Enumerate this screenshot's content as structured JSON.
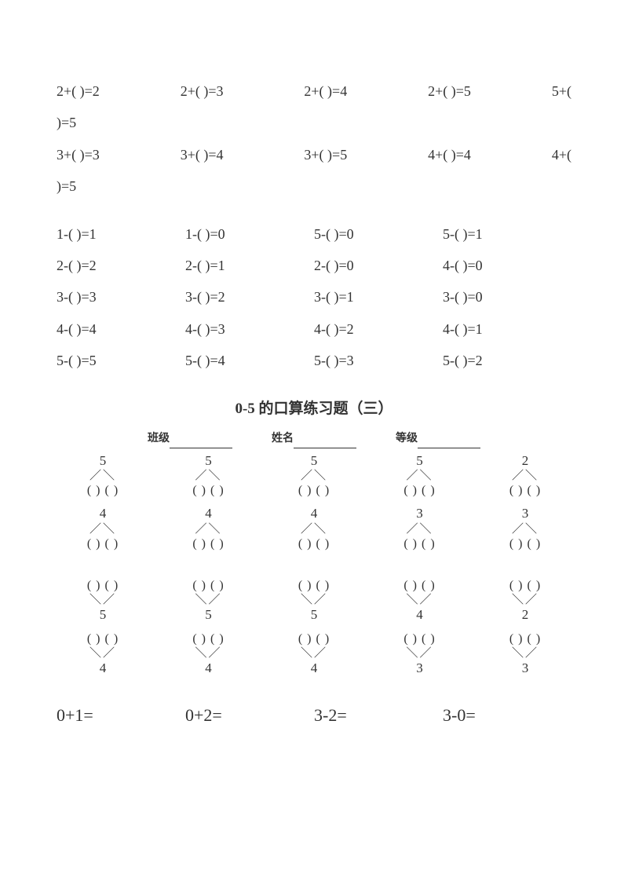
{
  "block1": {
    "line1": [
      "2+(  )=2",
      "2+(  )=3",
      "2+(  )=4",
      "2+(  )=5",
      "5+("
    ],
    "line1_wrap": ")=5",
    "line2": [
      "3+(  )=3",
      "3+(  )=4",
      "3+(  )=5",
      "4+(  )=4",
      "4+("
    ],
    "line2_wrap": ")=5"
  },
  "block2": {
    "rows": [
      [
        "1-(  )=1",
        "1-(  )=0",
        "5-(  )=0",
        "5-(  )=1"
      ],
      [
        "2-(  )=2",
        "2-(  )=1",
        "2-(  )=0",
        "4-(  )=0"
      ],
      [
        "3-(  )=3",
        "3-(  )=2",
        "3-(  )=1",
        "3-(  )=0"
      ],
      [
        "4-(  )=4",
        "4-(  )=3",
        "4-(  )=2",
        "4-(  )=1"
      ],
      [
        "5-(  )=5",
        "5-(  )=4",
        "5-(  )=3",
        "5-(  )=2"
      ]
    ]
  },
  "title": "0-5 的口算练习题（三）",
  "fields": {
    "class_label": "班级",
    "name_label": "姓名",
    "grade_label": "等级"
  },
  "trees_down": {
    "row1": [
      "5",
      "5",
      "5",
      "5",
      "2"
    ],
    "row2": [
      "4",
      "4",
      "4",
      "3",
      "3"
    ]
  },
  "trees_up": {
    "row1": [
      "5",
      "5",
      "5",
      "4",
      "2"
    ],
    "row2": [
      "4",
      "4",
      "4",
      "3",
      "3"
    ]
  },
  "tree_branch_down": "／＼",
  "tree_branch_up": "＼／",
  "tree_leaves": "(  ) (  )",
  "big_eqs": [
    "0+1=",
    "0+2=",
    "3-2=",
    "3-0="
  ]
}
